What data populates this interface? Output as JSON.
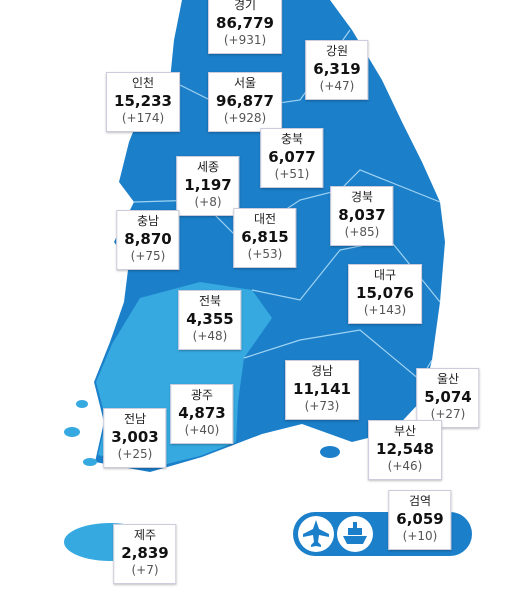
{
  "regions": [
    {
      "name": "경기",
      "total": "86,779",
      "change": "(+931)"
    },
    {
      "name": "강원",
      "total": "6,319",
      "change": "(+47)"
    },
    {
      "name": "인천",
      "total": "15,233",
      "change": "(+174)"
    },
    {
      "name": "서울",
      "total": "96,877",
      "change": "(+928)"
    },
    {
      "name": "충북",
      "total": "6,077",
      "change": "(+51)"
    },
    {
      "name": "세종",
      "total": "1,197",
      "change": "(+8)"
    },
    {
      "name": "경북",
      "total": "8,037",
      "change": "(+85)"
    },
    {
      "name": "충남",
      "total": "8,870",
      "change": "(+75)"
    },
    {
      "name": "대전",
      "total": "6,815",
      "change": "(+53)"
    },
    {
      "name": "대구",
      "total": "15,076",
      "change": "(+143)"
    },
    {
      "name": "전북",
      "total": "4,355",
      "change": "(+48)"
    },
    {
      "name": "경남",
      "total": "11,141",
      "change": "(+73)"
    },
    {
      "name": "울산",
      "total": "5,074",
      "change": "(+27)"
    },
    {
      "name": "광주",
      "total": "4,873",
      "change": "(+40)"
    },
    {
      "name": "전남",
      "total": "3,003",
      "change": "(+25)"
    },
    {
      "name": "부산",
      "total": "12,548",
      "change": "(+46)"
    },
    {
      "name": "제주",
      "total": "2,839",
      "change": "(+7)"
    },
    {
      "name": "검역",
      "total": "6,059",
      "change": "(+10)"
    }
  ]
}
